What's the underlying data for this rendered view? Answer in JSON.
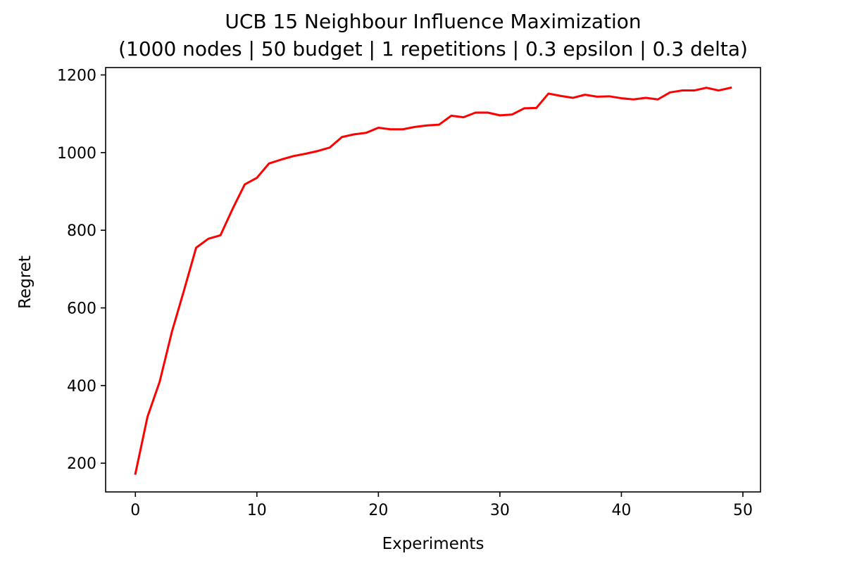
{
  "chart_data": {
    "type": "line",
    "title": "UCB 15 Neighbour Influence Maximization",
    "subtitle": "(1000 nodes | 50 budget | 1 repetitions | 0.3 epsilon | 0.3 delta)",
    "xlabel": "Experiments",
    "ylabel": "Regret",
    "xlim": [
      -2.45,
      51.45
    ],
    "ylim": [
      126,
      1219
    ],
    "xticks": [
      0,
      10,
      20,
      30,
      40,
      50
    ],
    "yticks": [
      200,
      400,
      600,
      800,
      1000,
      1200
    ],
    "grid": false,
    "series": [
      {
        "color": "#ff0000",
        "x": [
          0,
          1,
          2,
          3,
          4,
          5,
          6,
          7,
          8,
          9,
          10,
          11,
          12,
          13,
          14,
          15,
          16,
          17,
          18,
          19,
          20,
          21,
          22,
          23,
          24,
          25,
          26,
          27,
          28,
          29,
          30,
          31,
          32,
          33,
          34,
          35,
          36,
          37,
          38,
          39,
          40,
          41,
          42,
          43,
          44,
          45,
          46,
          47,
          48,
          49
        ],
        "values": [
          173,
          320,
          410,
          538,
          645,
          755,
          778,
          787,
          855,
          918,
          935,
          972,
          982,
          991,
          997,
          1004,
          1013,
          1040,
          1047,
          1051,
          1064,
          1060,
          1060,
          1066,
          1070,
          1072,
          1095,
          1091,
          1103,
          1103,
          1096,
          1098,
          1114,
          1115,
          1152,
          1146,
          1141,
          1149,
          1144,
          1145,
          1140,
          1137,
          1141,
          1137,
          1155,
          1160,
          1160,
          1167,
          1160,
          1167
        ]
      }
    ]
  }
}
